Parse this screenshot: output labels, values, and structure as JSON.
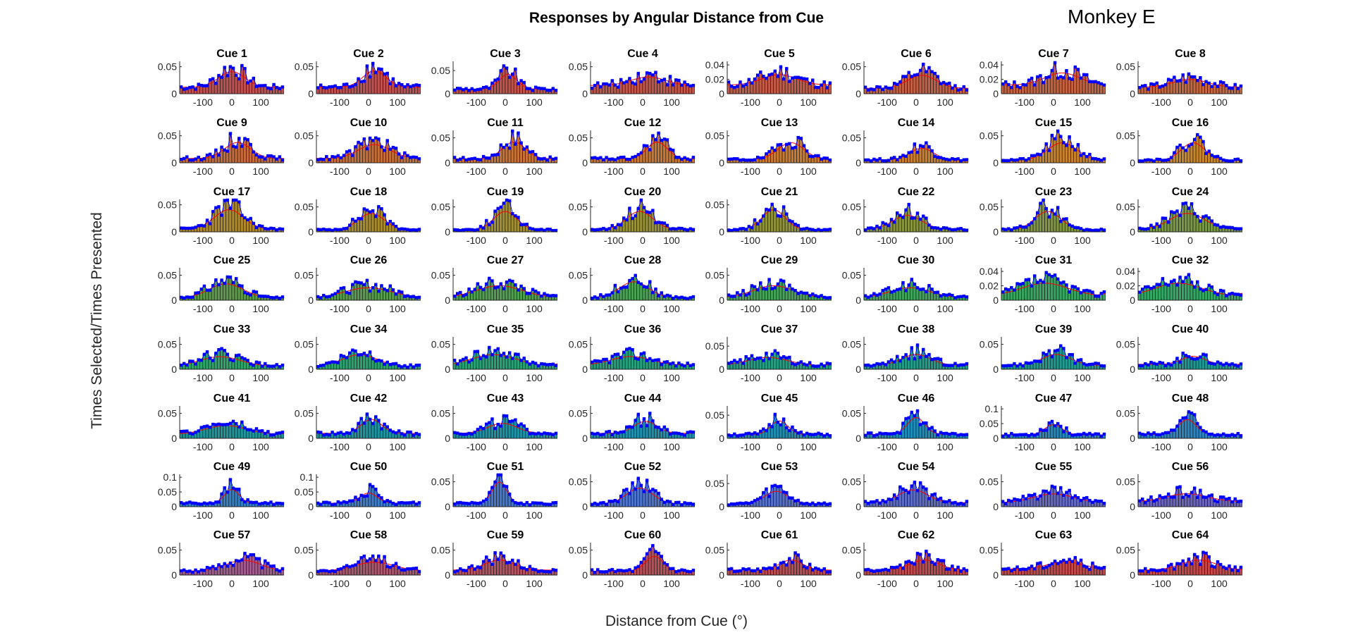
{
  "figure": {
    "title": "Responses by Angular Distance from Cue",
    "corner_label": "Monkey E",
    "ylabel": "Times Selected/Times Presented",
    "xlabel": "Distance from Cue (°)"
  },
  "chart_data": {
    "type": "bar",
    "layout": "grid 8 x 8 small multiples",
    "x_ticks": [
      -100,
      0,
      100
    ],
    "xlim": [
      -180,
      180
    ],
    "bin_width_deg": 10,
    "overlay": "red fitted curve with blue markers at bar tops",
    "colors": {
      "curve": "#ff0000",
      "markers": "#0000ff",
      "bar_edge": "#000000"
    },
    "panels": [
      {
        "title": "Cue 1",
        "ylim": [
          0,
          0.06
        ],
        "yticks": [
          0,
          0.05
        ],
        "bar_color": "#c05050",
        "center": 0,
        "peak": 0.048,
        "width": 45,
        "base": 0.012
      },
      {
        "title": "Cue 2",
        "ylim": [
          0,
          0.06
        ],
        "yticks": [
          0,
          0.05
        ],
        "bar_color": "#c05050",
        "center": 20,
        "peak": 0.05,
        "width": 40,
        "base": 0.012
      },
      {
        "title": "Cue 3",
        "ylim": [
          0,
          0.07
        ],
        "yticks": [
          0,
          0.05
        ],
        "bar_color": "#c05248",
        "center": 10,
        "peak": 0.05,
        "width": 30,
        "base": 0.01
      },
      {
        "title": "Cue 4",
        "ylim": [
          0,
          0.06
        ],
        "yticks": [
          0,
          0.05
        ],
        "bar_color": "#c05548",
        "center": 20,
        "peak": 0.035,
        "width": 60,
        "base": 0.015
      },
      {
        "title": "Cue 5",
        "ylim": [
          0,
          0.045
        ],
        "yticks": [
          0,
          0.02,
          0.04
        ],
        "bar_color": "#c25a45",
        "center": 0,
        "peak": 0.03,
        "width": 60,
        "base": 0.012
      },
      {
        "title": "Cue 6",
        "ylim": [
          0,
          0.06
        ],
        "yticks": [
          0,
          0.05
        ],
        "bar_color": "#c25e42",
        "center": 20,
        "peak": 0.04,
        "width": 50,
        "base": 0.01
      },
      {
        "title": "Cue 7",
        "ylim": [
          0,
          0.045
        ],
        "yticks": [
          0,
          0.02,
          0.04
        ],
        "bar_color": "#c46240",
        "center": 30,
        "peak": 0.033,
        "width": 60,
        "base": 0.012
      },
      {
        "title": "Cue 8",
        "ylim": [
          0,
          0.06
        ],
        "yticks": [
          0,
          0.05
        ],
        "bar_color": "#c4663e",
        "center": 0,
        "peak": 0.03,
        "width": 60,
        "base": 0.012
      },
      {
        "title": "Cue 9",
        "ylim": [
          0,
          0.06
        ],
        "yticks": [
          0,
          0.05
        ],
        "bar_color": "#c66a3a",
        "center": 20,
        "peak": 0.045,
        "width": 45,
        "base": 0.008
      },
      {
        "title": "Cue 10",
        "ylim": [
          0,
          0.06
        ],
        "yticks": [
          0,
          0.05
        ],
        "bar_color": "#c66e38",
        "center": 20,
        "peak": 0.04,
        "width": 55,
        "base": 0.008
      },
      {
        "title": "Cue 11",
        "ylim": [
          0,
          0.065
        ],
        "yticks": [
          0,
          0.05
        ],
        "bar_color": "#c87234",
        "center": 30,
        "peak": 0.05,
        "width": 40,
        "base": 0.008
      },
      {
        "title": "Cue 12",
        "ylim": [
          0,
          0.065
        ],
        "yticks": [
          0,
          0.05
        ],
        "bar_color": "#c87632",
        "center": 50,
        "peak": 0.05,
        "width": 35,
        "base": 0.008
      },
      {
        "title": "Cue 13",
        "ylim": [
          0,
          0.06
        ],
        "yticks": [
          0,
          0.05
        ],
        "bar_color": "#c87a30",
        "center": 40,
        "peak": 0.045,
        "width": 45,
        "base": 0.006
      },
      {
        "title": "Cue 14",
        "ylim": [
          0,
          0.065
        ],
        "yticks": [
          0,
          0.05
        ],
        "bar_color": "#c87e2e",
        "center": 20,
        "peak": 0.035,
        "width": 40,
        "base": 0.006
      },
      {
        "title": "Cue 15",
        "ylim": [
          0,
          0.06
        ],
        "yticks": [
          0,
          0.05
        ],
        "bar_color": "#c8822c",
        "center": 30,
        "peak": 0.045,
        "width": 50,
        "base": 0.005
      },
      {
        "title": "Cue 16",
        "ylim": [
          0,
          0.06
        ],
        "yticks": [
          0,
          0.05
        ],
        "bar_color": "#c8862a",
        "center": 10,
        "peak": 0.045,
        "width": 40,
        "base": 0.005
      },
      {
        "title": "Cue 17",
        "ylim": [
          0,
          0.06
        ],
        "yticks": [
          0,
          0.05
        ],
        "bar_color": "#b08a2a",
        "center": -10,
        "peak": 0.05,
        "width": 50,
        "base": 0.005
      },
      {
        "title": "Cue 18",
        "ylim": [
          0,
          0.065
        ],
        "yticks": [
          0,
          0.05
        ],
        "bar_color": "#a88c2c",
        "center": 10,
        "peak": 0.045,
        "width": 45,
        "base": 0.004
      },
      {
        "title": "Cue 19",
        "ylim": [
          0,
          0.065
        ],
        "yticks": [
          0,
          0.05
        ],
        "bar_color": "#a08e30",
        "center": 0,
        "peak": 0.05,
        "width": 40,
        "base": 0.004
      },
      {
        "title": "Cue 20",
        "ylim": [
          0,
          0.065
        ],
        "yticks": [
          0,
          0.05
        ],
        "bar_color": "#989034",
        "center": -10,
        "peak": 0.05,
        "width": 45,
        "base": 0.005
      },
      {
        "title": "Cue 21",
        "ylim": [
          0,
          0.06
        ],
        "yticks": [
          0,
          0.05
        ],
        "bar_color": "#909238",
        "center": -20,
        "peak": 0.05,
        "width": 40,
        "base": 0.004
      },
      {
        "title": "Cue 22",
        "ylim": [
          0,
          0.065
        ],
        "yticks": [
          0,
          0.05
        ],
        "bar_color": "#88943c",
        "center": -30,
        "peak": 0.04,
        "width": 50,
        "base": 0.005
      },
      {
        "title": "Cue 23",
        "ylim": [
          0,
          0.065
        ],
        "yticks": [
          0,
          0.05
        ],
        "bar_color": "#809640",
        "center": -20,
        "peak": 0.05,
        "width": 45,
        "base": 0.004
      },
      {
        "title": "Cue 24",
        "ylim": [
          0,
          0.065
        ],
        "yticks": [
          0,
          0.05
        ],
        "bar_color": "#789844",
        "center": -10,
        "peak": 0.045,
        "width": 60,
        "base": 0.005
      },
      {
        "title": "Cue 25",
        "ylim": [
          0,
          0.065
        ],
        "yticks": [
          0,
          0.05
        ],
        "bar_color": "#5c9a48",
        "center": -20,
        "peak": 0.04,
        "width": 60,
        "base": 0.004
      },
      {
        "title": "Cue 26",
        "ylim": [
          0,
          0.065
        ],
        "yticks": [
          0,
          0.05
        ],
        "bar_color": "#569c4c",
        "center": 0,
        "peak": 0.03,
        "width": 80,
        "base": 0.005
      },
      {
        "title": "Cue 27",
        "ylim": [
          0,
          0.065
        ],
        "yticks": [
          0,
          0.05
        ],
        "bar_color": "#509e50",
        "center": -20,
        "peak": 0.035,
        "width": 80,
        "base": 0.005
      },
      {
        "title": "Cue 28",
        "ylim": [
          0,
          0.065
        ],
        "yticks": [
          0,
          0.05
        ],
        "bar_color": "#4aa054",
        "center": -30,
        "peak": 0.045,
        "width": 50,
        "base": 0.005
      },
      {
        "title": "Cue 29",
        "ylim": [
          0,
          0.065
        ],
        "yticks": [
          0,
          0.05
        ],
        "bar_color": "#44a258",
        "center": -20,
        "peak": 0.035,
        "width": 70,
        "base": 0.005
      },
      {
        "title": "Cue 30",
        "ylim": [
          0,
          0.065
        ],
        "yticks": [
          0,
          0.05
        ],
        "bar_color": "#3ea45c",
        "center": -20,
        "peak": 0.03,
        "width": 70,
        "base": 0.005
      },
      {
        "title": "Cue 31",
        "ylim": [
          0,
          0.045
        ],
        "yticks": [
          0,
          0.02,
          0.04
        ],
        "bar_color": "#38a660",
        "center": -30,
        "peak": 0.028,
        "width": 80,
        "base": 0.006
      },
      {
        "title": "Cue 32",
        "ylim": [
          0,
          0.045
        ],
        "yticks": [
          0,
          0.02,
          0.04
        ],
        "bar_color": "#32a864",
        "center": -40,
        "peak": 0.028,
        "width": 80,
        "base": 0.006
      },
      {
        "title": "Cue 33",
        "ylim": [
          0,
          0.065
        ],
        "yticks": [
          0,
          0.05
        ],
        "bar_color": "#2ca66a",
        "center": -40,
        "peak": 0.03,
        "width": 70,
        "base": 0.006
      },
      {
        "title": "Cue 34",
        "ylim": [
          0,
          0.065
        ],
        "yticks": [
          0,
          0.05
        ],
        "bar_color": "#28a470",
        "center": -30,
        "peak": 0.035,
        "width": 60,
        "base": 0.006
      },
      {
        "title": "Cue 35",
        "ylim": [
          0,
          0.065
        ],
        "yticks": [
          0,
          0.05
        ],
        "bar_color": "#26a276",
        "center": -40,
        "peak": 0.035,
        "width": 80,
        "base": 0.006
      },
      {
        "title": "Cue 36",
        "ylim": [
          0,
          0.065
        ],
        "yticks": [
          0,
          0.05
        ],
        "bar_color": "#24a07c",
        "center": -40,
        "peak": 0.03,
        "width": 70,
        "base": 0.008
      },
      {
        "title": "Cue 37",
        "ylim": [
          0,
          0.07
        ],
        "yticks": [
          0,
          0.05
        ],
        "bar_color": "#229e82",
        "center": -40,
        "peak": 0.03,
        "width": 70,
        "base": 0.008
      },
      {
        "title": "Cue 38",
        "ylim": [
          0,
          0.065
        ],
        "yticks": [
          0,
          0.05
        ],
        "bar_color": "#209c88",
        "center": 0,
        "peak": 0.035,
        "width": 50,
        "base": 0.008
      },
      {
        "title": "Cue 39",
        "ylim": [
          0,
          0.065
        ],
        "yticks": [
          0,
          0.05
        ],
        "bar_color": "#1e9a8e",
        "center": 10,
        "peak": 0.035,
        "width": 50,
        "base": 0.008
      },
      {
        "title": "Cue 40",
        "ylim": [
          0,
          0.065
        ],
        "yticks": [
          0,
          0.05
        ],
        "bar_color": "#1c9894",
        "center": 10,
        "peak": 0.03,
        "width": 40,
        "base": 0.01
      },
      {
        "title": "Cue 41",
        "ylim": [
          0,
          0.065
        ],
        "yticks": [
          0,
          0.05
        ],
        "bar_color": "#1c969a",
        "center": -20,
        "peak": 0.03,
        "width": 70,
        "base": 0.008
      },
      {
        "title": "Cue 42",
        "ylim": [
          0,
          0.065
        ],
        "yticks": [
          0,
          0.05
        ],
        "bar_color": "#1c94a0",
        "center": 10,
        "peak": 0.045,
        "width": 35,
        "base": 0.01
      },
      {
        "title": "Cue 43",
        "ylim": [
          0,
          0.065
        ],
        "yticks": [
          0,
          0.05
        ],
        "bar_color": "#1c92a6",
        "center": -10,
        "peak": 0.035,
        "width": 50,
        "base": 0.01
      },
      {
        "title": "Cue 44",
        "ylim": [
          0,
          0.065
        ],
        "yticks": [
          0,
          0.05
        ],
        "bar_color": "#1c90ac",
        "center": 10,
        "peak": 0.04,
        "width": 40,
        "base": 0.01
      },
      {
        "title": "Cue 45",
        "ylim": [
          0,
          0.07
        ],
        "yticks": [
          0,
          0.05
        ],
        "bar_color": "#1c8eb2",
        "center": 0,
        "peak": 0.045,
        "width": 30,
        "base": 0.008
      },
      {
        "title": "Cue 46",
        "ylim": [
          0,
          0.065
        ],
        "yticks": [
          0,
          0.05
        ],
        "bar_color": "#1c8cb8",
        "center": 0,
        "peak": 0.05,
        "width": 30,
        "base": 0.008
      },
      {
        "title": "Cue 47",
        "ylim": [
          0,
          0.11
        ],
        "yticks": [
          0,
          0.05,
          0.1
        ],
        "bar_color": "#2488bc",
        "center": 0,
        "peak": 0.055,
        "width": 30,
        "base": 0.012
      },
      {
        "title": "Cue 48",
        "ylim": [
          0,
          0.065
        ],
        "yticks": [
          0,
          0.05
        ],
        "bar_color": "#2c84c0",
        "center": -10,
        "peak": 0.045,
        "width": 30,
        "base": 0.008
      },
      {
        "title": "Cue 49",
        "ylim": [
          0,
          0.11
        ],
        "yticks": [
          0,
          0.05,
          0.1
        ],
        "bar_color": "#3480c4",
        "center": 0,
        "peak": 0.07,
        "width": 25,
        "base": 0.012
      },
      {
        "title": "Cue 50",
        "ylim": [
          0,
          0.11
        ],
        "yticks": [
          0,
          0.05,
          0.1
        ],
        "bar_color": "#3c7cc8",
        "center": 0,
        "peak": 0.055,
        "width": 30,
        "base": 0.012
      },
      {
        "title": "Cue 51",
        "ylim": [
          0,
          0.065
        ],
        "yticks": [
          0,
          0.05
        ],
        "bar_color": "#4478cc",
        "center": -20,
        "peak": 0.06,
        "width": 25,
        "base": 0.006
      },
      {
        "title": "Cue 52",
        "ylim": [
          0,
          0.065
        ],
        "yticks": [
          0,
          0.05
        ],
        "bar_color": "#4c74cc",
        "center": -10,
        "peak": 0.045,
        "width": 45,
        "base": 0.006
      },
      {
        "title": "Cue 53",
        "ylim": [
          0,
          0.07
        ],
        "yticks": [
          0,
          0.05
        ],
        "bar_color": "#5470c8",
        "center": -10,
        "peak": 0.04,
        "width": 40,
        "base": 0.006
      },
      {
        "title": "Cue 54",
        "ylim": [
          0,
          0.065
        ],
        "yticks": [
          0,
          0.05
        ],
        "bar_color": "#5c6cc4",
        "center": -10,
        "peak": 0.04,
        "width": 50,
        "base": 0.008
      },
      {
        "title": "Cue 55",
        "ylim": [
          0,
          0.065
        ],
        "yticks": [
          0,
          0.05
        ],
        "bar_color": "#6468c0",
        "center": 0,
        "peak": 0.03,
        "width": 70,
        "base": 0.008
      },
      {
        "title": "Cue 56",
        "ylim": [
          0,
          0.065
        ],
        "yticks": [
          0,
          0.05
        ],
        "bar_color": "#6c64bc",
        "center": -10,
        "peak": 0.03,
        "width": 70,
        "base": 0.01
      },
      {
        "title": "Cue 57",
        "ylim": [
          0,
          0.065
        ],
        "yticks": [
          0,
          0.05
        ],
        "bar_color": "#a05a8c",
        "center": 40,
        "peak": 0.035,
        "width": 60,
        "base": 0.008
      },
      {
        "title": "Cue 58",
        "ylim": [
          0,
          0.065
        ],
        "yticks": [
          0,
          0.05
        ],
        "bar_color": "#a8566c",
        "center": 20,
        "peak": 0.03,
        "width": 70,
        "base": 0.008
      },
      {
        "title": "Cue 59",
        "ylim": [
          0,
          0.065
        ],
        "yticks": [
          0,
          0.05
        ],
        "bar_color": "#b05260",
        "center": -20,
        "peak": 0.035,
        "width": 50,
        "base": 0.01
      },
      {
        "title": "Cue 60",
        "ylim": [
          0,
          0.065
        ],
        "yticks": [
          0,
          0.05
        ],
        "bar_color": "#b84e56",
        "center": 40,
        "peak": 0.045,
        "width": 30,
        "base": 0.008
      },
      {
        "title": "Cue 61",
        "ylim": [
          0,
          0.065
        ],
        "yticks": [
          0,
          0.05
        ],
        "bar_color": "#b84c50",
        "center": 40,
        "peak": 0.035,
        "width": 40,
        "base": 0.01
      },
      {
        "title": "Cue 62",
        "ylim": [
          0,
          0.065
        ],
        "yticks": [
          0,
          0.05
        ],
        "bar_color": "#bc4a4c",
        "center": 30,
        "peak": 0.035,
        "width": 50,
        "base": 0.01
      },
      {
        "title": "Cue 63",
        "ylim": [
          0,
          0.065
        ],
        "yticks": [
          0,
          0.05
        ],
        "bar_color": "#c04848",
        "center": 40,
        "peak": 0.03,
        "width": 60,
        "base": 0.012
      },
      {
        "title": "Cue 64",
        "ylim": [
          0,
          0.065
        ],
        "yticks": [
          0,
          0.05
        ],
        "bar_color": "#c44646",
        "center": 30,
        "peak": 0.035,
        "width": 60,
        "base": 0.01
      }
    ]
  }
}
